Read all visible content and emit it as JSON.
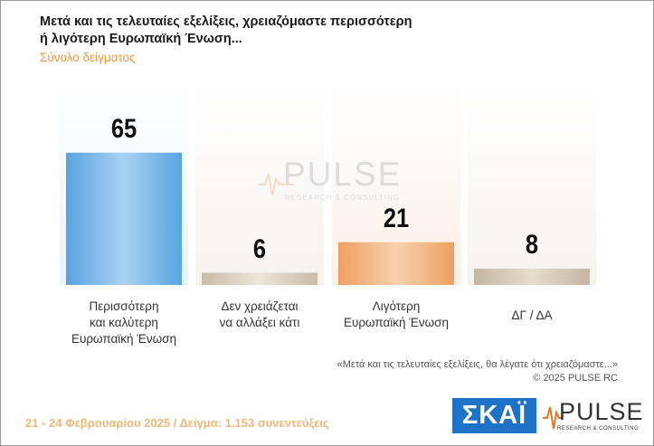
{
  "header": {
    "title": "Μετά και τις τελευταίες εξελίξεις, χρειαζόμαστε περισσότερη ή λιγότερη Ευρωπαϊκή Ένωση...",
    "subtitle": "Σύνολο δείγματος"
  },
  "chart_data": {
    "type": "bar",
    "title": "Μετά και τις τελευταίες εξελίξεις, χρειαζόμαστε περισσότερη ή λιγότερη Ευρωπαϊκή Ένωση...",
    "categories": [
      "Περισσότερη και καλύτερη Ευρωπαϊκή Ένωση",
      "Δεν χρειάζεται να αλλάξει κάτι",
      "Λιγότερη Ευρωπαϊκή Ένωση",
      "ΔΓ / ΔΑ"
    ],
    "values": [
      65,
      6,
      21,
      8
    ],
    "colors": [
      "#7fb9e8",
      "#d8cdbd",
      "#f2b27c",
      "#d2c6b6"
    ],
    "ylim": [
      0,
      100
    ],
    "xlabel": "",
    "ylabel": "",
    "grid": false,
    "legend": "none"
  },
  "category_lines": [
    [
      "Περισσότερη",
      "και καλύτερη",
      "Ευρωπαϊκή Ένωση"
    ],
    [
      "Δεν χρειάζεται",
      "να αλλάξει κάτι"
    ],
    [
      "Λιγότερη",
      "Ευρωπαϊκή Ένωση"
    ],
    [
      "ΔΓ / ΔΑ"
    ]
  ],
  "watermark": {
    "word": "PULSE",
    "sub": "RESEARCH & CONSULTING"
  },
  "notes": {
    "question_note": "«Μετά και τις τελευταίες εξελίξεις, θα λέγατε ότι χρειαζόμαστε...»",
    "copyright": "©  2025  PULSE RC"
  },
  "footer": {
    "text": "21 - 24 Φεβρουαρίου 2025  /  Δείγμα:  1.153 συνεντεύξεις"
  },
  "logos": {
    "skai": "ΣΚΑΪ",
    "pulse": "PULSE",
    "pulse_sub": "RESEARCH & CONSULTING",
    "skai_color": "#1e73c8"
  }
}
